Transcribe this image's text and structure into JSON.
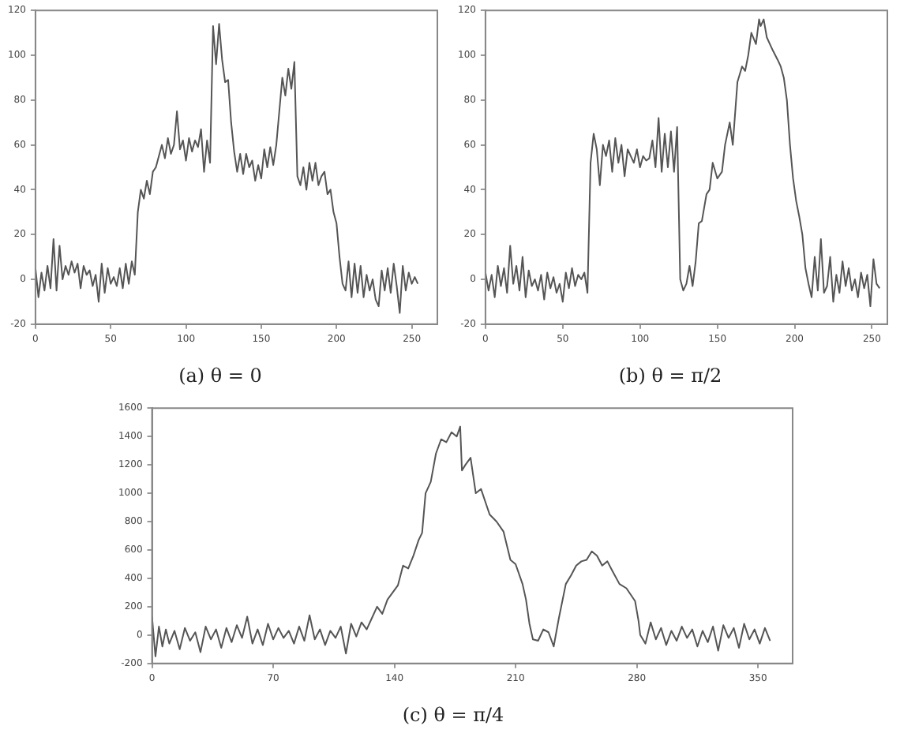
{
  "chart_data": [
    {
      "type": "line",
      "title": "(a) θ = 0",
      "xlim": [
        0,
        267
      ],
      "xticks": [
        0,
        50,
        100,
        150,
        200,
        250
      ],
      "ylim": [
        -20,
        120
      ],
      "yticks": [
        -20,
        0,
        20,
        40,
        60,
        80,
        100,
        120
      ],
      "grid": false,
      "legend": false,
      "marker": "none",
      "line_style": "solid",
      "series": [
        {
          "color": "#555555",
          "x": [
            0,
            2,
            4,
            6,
            8,
            10,
            12,
            14,
            16,
            18,
            20,
            22,
            24,
            26,
            28,
            30,
            32,
            34,
            36,
            38,
            40,
            42,
            44,
            46,
            48,
            50,
            52,
            54,
            56,
            58,
            60,
            62,
            64,
            66,
            68,
            70,
            72,
            74,
            76,
            78,
            80,
            82,
            84,
            86,
            88,
            90,
            92,
            94,
            96,
            98,
            100,
            102,
            104,
            106,
            108,
            110,
            112,
            114,
            116,
            118,
            120,
            122,
            124,
            126,
            128,
            130,
            132,
            134,
            136,
            138,
            140,
            142,
            144,
            146,
            148,
            150,
            152,
            154,
            156,
            158,
            160,
            162,
            164,
            166,
            168,
            170,
            172,
            174,
            176,
            178,
            180,
            182,
            184,
            186,
            188,
            190,
            192,
            194,
            196,
            198,
            200,
            202,
            204,
            206,
            208,
            210,
            212,
            214,
            216,
            218,
            220,
            222,
            224,
            226,
            228,
            230,
            232,
            234,
            236,
            238,
            240,
            242,
            244,
            246,
            248,
            250,
            252,
            254
          ],
          "values": [
            5,
            -8,
            3,
            -5,
            6,
            -4,
            18,
            -5,
            15,
            0,
            6,
            2,
            8,
            3,
            7,
            -4,
            6,
            2,
            4,
            -3,
            2,
            -10,
            7,
            -6,
            5,
            -2,
            1,
            -3,
            5,
            -4,
            7,
            -2,
            8,
            2,
            30,
            40,
            36,
            44,
            38,
            48,
            50,
            55,
            60,
            54,
            63,
            56,
            60,
            75,
            58,
            62,
            53,
            63,
            57,
            62,
            59,
            67,
            48,
            62,
            52,
            113,
            96,
            114,
            98,
            88,
            89,
            70,
            57,
            48,
            56,
            47,
            56,
            50,
            53,
            44,
            51,
            45,
            58,
            50,
            59,
            51,
            60,
            75,
            90,
            82,
            94,
            85,
            97,
            46,
            42,
            50,
            40,
            52,
            44,
            52,
            42,
            46,
            48,
            38,
            40,
            30,
            25,
            10,
            -2,
            -5,
            8,
            -8,
            7,
            -6,
            6,
            -8,
            2,
            -5,
            0,
            -9,
            -12,
            4,
            -5,
            5,
            -6,
            7,
            -3,
            -15,
            6,
            -5,
            3,
            -2,
            1,
            -2
          ]
        }
      ]
    },
    {
      "type": "line",
      "title": "(b) θ = π/2",
      "xlim": [
        0,
        260
      ],
      "xticks": [
        0,
        50,
        100,
        150,
        200,
        250
      ],
      "ylim": [
        -20,
        120
      ],
      "yticks": [
        -20,
        0,
        20,
        40,
        60,
        80,
        100,
        120
      ],
      "grid": false,
      "legend": false,
      "marker": "none",
      "line_style": "solid",
      "series": [
        {
          "color": "#555555",
          "x": [
            0,
            2,
            4,
            6,
            8,
            10,
            12,
            14,
            16,
            18,
            20,
            22,
            24,
            26,
            28,
            30,
            32,
            34,
            36,
            38,
            40,
            42,
            44,
            46,
            48,
            50,
            52,
            54,
            56,
            58,
            60,
            62,
            64,
            66,
            68,
            70,
            72,
            74,
            76,
            78,
            80,
            82,
            84,
            86,
            88,
            90,
            92,
            94,
            96,
            98,
            100,
            102,
            104,
            106,
            108,
            110,
            112,
            114,
            116,
            118,
            120,
            122,
            124,
            126,
            128,
            130,
            132,
            134,
            136,
            138,
            140,
            143,
            145,
            147,
            150,
            153,
            155,
            158,
            160,
            163,
            166,
            168,
            170,
            172,
            175,
            177,
            178,
            180,
            182,
            184,
            186,
            189,
            191,
            193,
            195,
            197,
            199,
            201,
            203,
            205,
            207,
            209,
            211,
            213,
            215,
            217,
            219,
            221,
            223,
            225,
            227,
            229,
            231,
            233,
            235,
            237,
            239,
            241,
            243,
            245,
            247,
            249,
            251,
            253,
            255
          ],
          "values": [
            3,
            -5,
            2,
            -8,
            6,
            -3,
            5,
            -6,
            15,
            -2,
            6,
            -5,
            10,
            -8,
            4,
            -3,
            0,
            -5,
            2,
            -9,
            3,
            -4,
            1,
            -6,
            -2,
            -10,
            3,
            -4,
            5,
            -3,
            2,
            0,
            3,
            -6,
            52,
            65,
            58,
            42,
            60,
            55,
            62,
            48,
            63,
            52,
            60,
            46,
            58,
            55,
            52,
            58,
            50,
            55,
            53,
            54,
            62,
            50,
            72,
            48,
            65,
            50,
            66,
            48,
            68,
            0,
            -5,
            -2,
            6,
            -3,
            8,
            25,
            26,
            38,
            40,
            52,
            45,
            48,
            60,
            70,
            60,
            88,
            95,
            93,
            100,
            110,
            105,
            116,
            113,
            116,
            108,
            105,
            102,
            98,
            95,
            90,
            80,
            60,
            45,
            35,
            28,
            20,
            5,
            -2,
            -8,
            10,
            -5,
            18,
            -6,
            -3,
            10,
            -10,
            2,
            -6,
            8,
            -3,
            5,
            -5,
            0,
            -8,
            3,
            -4,
            2,
            -12,
            9,
            -2,
            -4
          ]
        }
      ]
    },
    {
      "type": "line",
      "title": "(c) θ = π/4",
      "xlim": [
        0,
        370
      ],
      "xticks": [
        0,
        70,
        140,
        210,
        280,
        350
      ],
      "ylim": [
        -200,
        1600
      ],
      "yticks": [
        -200,
        0,
        200,
        400,
        600,
        800,
        1000,
        1200,
        1400,
        1600
      ],
      "grid": false,
      "legend": false,
      "marker": "none",
      "line_style": "solid",
      "series": [
        {
          "color": "#555555",
          "x": [
            0,
            2,
            4,
            6,
            8,
            10,
            13,
            16,
            19,
            22,
            25,
            28,
            31,
            34,
            37,
            40,
            43,
            46,
            49,
            52,
            55,
            58,
            61,
            64,
            67,
            70,
            73,
            76,
            79,
            82,
            85,
            88,
            91,
            94,
            97,
            100,
            103,
            106,
            109,
            112,
            115,
            118,
            121,
            124,
            127,
            130,
            133,
            136,
            139,
            142,
            145,
            148,
            151,
            154,
            156,
            158,
            161,
            164,
            167,
            170,
            173,
            176,
            178,
            179,
            181,
            184,
            187,
            190,
            195,
            199,
            203,
            207,
            210,
            214,
            216,
            218,
            220,
            223,
            226,
            229,
            232,
            235,
            239,
            242,
            245,
            248,
            251,
            254,
            257,
            260,
            263,
            266,
            270,
            274,
            279,
            281,
            282,
            285,
            288,
            291,
            294,
            297,
            300,
            303,
            306,
            309,
            312,
            315,
            318,
            321,
            324,
            327,
            330,
            333,
            336,
            339,
            342,
            345,
            348,
            351,
            354,
            357
          ],
          "values": [
            130,
            -150,
            60,
            -80,
            40,
            -60,
            30,
            -100,
            50,
            -40,
            20,
            -120,
            60,
            -30,
            40,
            -90,
            50,
            -50,
            70,
            -20,
            130,
            -60,
            40,
            -70,
            80,
            -30,
            50,
            -20,
            30,
            -60,
            60,
            -40,
            140,
            -30,
            40,
            -70,
            30,
            -20,
            60,
            -130,
            80,
            -10,
            90,
            40,
            120,
            200,
            150,
            250,
            300,
            350,
            490,
            470,
            560,
            670,
            720,
            1000,
            1080,
            1280,
            1380,
            1360,
            1430,
            1400,
            1470,
            1160,
            1200,
            1250,
            1000,
            1030,
            850,
            800,
            730,
            530,
            500,
            360,
            250,
            80,
            -30,
            -40,
            40,
            20,
            -80,
            120,
            360,
            420,
            490,
            520,
            530,
            590,
            560,
            490,
            520,
            450,
            360,
            330,
            240,
            100,
            0,
            -60,
            90,
            -30,
            50,
            -70,
            30,
            -40,
            60,
            -20,
            40,
            -80,
            30,
            -50,
            60,
            -110,
            70,
            -20,
            50,
            -90,
            80,
            -30,
            40,
            -60,
            50,
            -40
          ]
        }
      ]
    }
  ]
}
